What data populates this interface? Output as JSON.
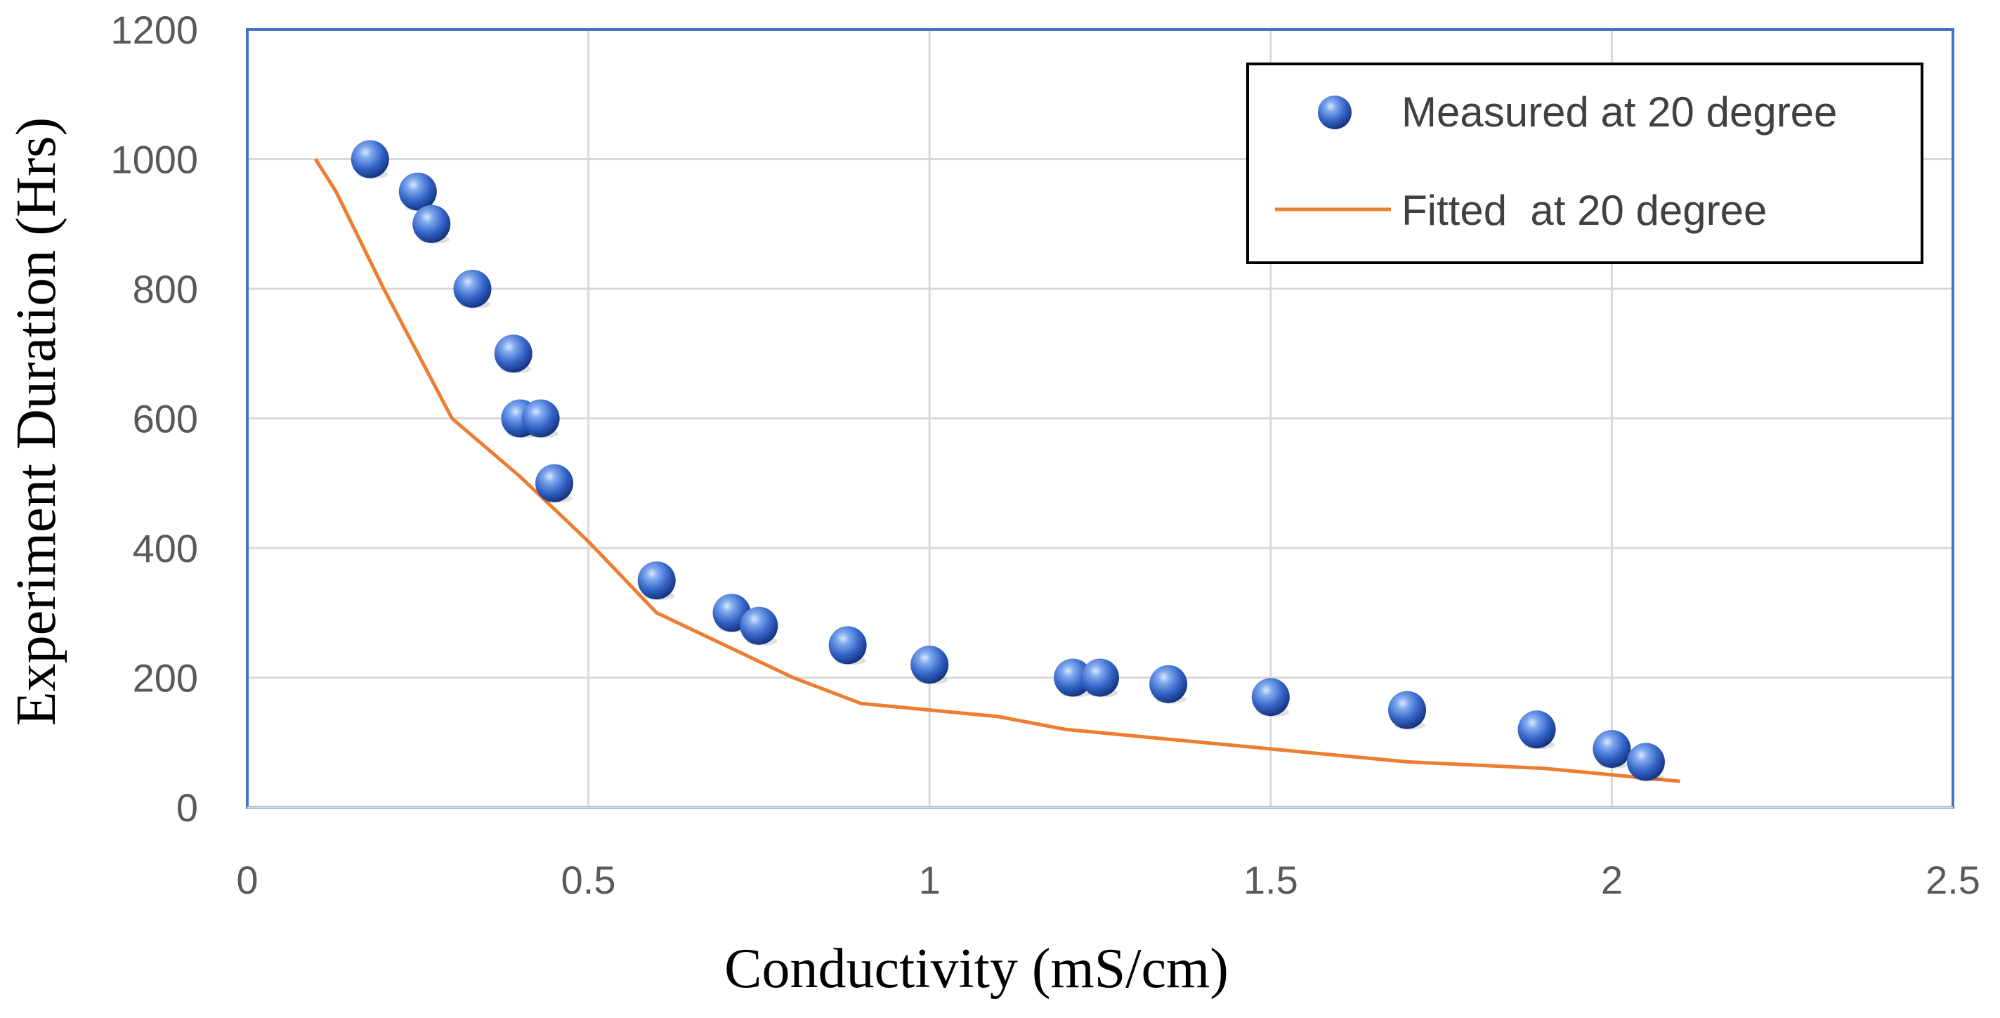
{
  "chart_data": {
    "type": "scatter",
    "title": "",
    "xlabel": "Conductivity (mS/cm)",
    "ylabel": "Experiment Duration (Hrs)",
    "xlim": [
      0,
      2.5
    ],
    "ylim": [
      0,
      1200
    ],
    "xticks": [
      0,
      0.5,
      1,
      1.5,
      2,
      2.5
    ],
    "xtick_labels": [
      "0",
      "0.5",
      "1",
      "1.5",
      "2",
      "2.5"
    ],
    "yticks": [
      0,
      200,
      400,
      600,
      800,
      1000,
      1200
    ],
    "ytick_labels": [
      "0",
      "200",
      "400",
      "600",
      "800",
      "1000",
      "1200"
    ],
    "grid": true,
    "legend_position": "top-right",
    "series": [
      {
        "name": "Measured at 20 degree",
        "kind": "scatter",
        "color": "#3a6fd0",
        "x": [
          0.18,
          0.25,
          0.27,
          0.33,
          0.39,
          0.4,
          0.43,
          0.45,
          0.6,
          0.71,
          0.75,
          0.88,
          1.0,
          1.21,
          1.25,
          1.35,
          1.5,
          1.7,
          1.89,
          2.0,
          2.05
        ],
        "y": [
          1000,
          950,
          900,
          800,
          700,
          600,
          600,
          500,
          350,
          300,
          280,
          250,
          220,
          200,
          200,
          190,
          170,
          150,
          120,
          90,
          70
        ]
      },
      {
        "name": "Fitted  at 20 degree",
        "kind": "line",
        "color": "#ed7d31",
        "x": [
          0.1,
          0.13,
          0.2,
          0.3,
          0.4,
          0.5,
          0.6,
          0.7,
          0.8,
          0.9,
          1.0,
          1.1,
          1.2,
          1.3,
          1.4,
          1.5,
          1.6,
          1.7,
          1.8,
          1.9,
          2.0,
          2.1
        ],
        "y": [
          1000,
          950,
          800,
          600,
          510,
          410,
          300,
          250,
          200,
          160,
          150,
          140,
          120,
          110,
          100,
          90,
          80,
          70,
          65,
          60,
          50,
          40
        ]
      }
    ]
  }
}
